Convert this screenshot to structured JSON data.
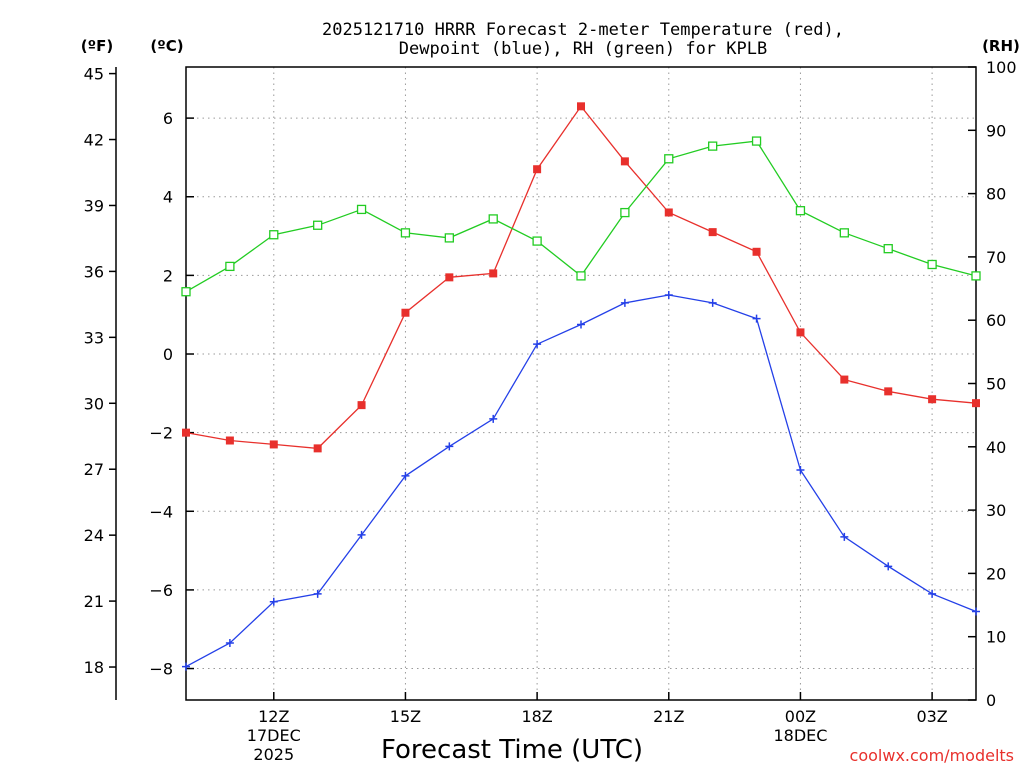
{
  "chart_data": {
    "type": "line",
    "title_line1": "2025121710 HRRR Forecast 2-meter Temperature (red),",
    "title_line2": "Dewpoint (blue), RH (green) for KPLB",
    "xlabel": "Forecast Time (UTC)",
    "credit": "coolwx.com/modelts",
    "units": {
      "fahrenheit": "(ºF)",
      "celsius": "(ºC)",
      "rh": "(RH)"
    },
    "x_hours": [
      10,
      11,
      12,
      13,
      14,
      15,
      16,
      17,
      18,
      19,
      20,
      21,
      22,
      23,
      24,
      25,
      26,
      27,
      28
    ],
    "x_ticks": [
      {
        "hour": 12,
        "lines": [
          "12Z",
          "17DEC",
          "2025"
        ]
      },
      {
        "hour": 15,
        "lines": [
          "15Z"
        ]
      },
      {
        "hour": 18,
        "lines": [
          "18Z"
        ]
      },
      {
        "hour": 21,
        "lines": [
          "21Z"
        ]
      },
      {
        "hour": 24,
        "lines": [
          "00Z",
          "18DEC"
        ]
      },
      {
        "hour": 27,
        "lines": [
          "03Z"
        ]
      }
    ],
    "xlim": [
      10,
      28
    ],
    "celsius_axis": {
      "range": [
        -8.8,
        7.3
      ],
      "ticks": [
        "-8",
        "-6",
        "-4",
        "-2",
        "0",
        "2",
        "4",
        "6"
      ]
    },
    "fahrenheit_axis": {
      "range": [
        16.5,
        45.3
      ],
      "ticks": [
        "18",
        "21",
        "24",
        "27",
        "30",
        "33",
        "36",
        "39",
        "42",
        "45"
      ]
    },
    "rh_axis": {
      "range": [
        0,
        100
      ],
      "ticks": [
        "0",
        "10",
        "20",
        "30",
        "40",
        "50",
        "60",
        "70",
        "80",
        "90",
        "100"
      ]
    },
    "series": [
      {
        "name": "Temperature",
        "units": "C",
        "axis": "celsius",
        "color": "#e8302c",
        "marker": "filled-square",
        "values": [
          -2.0,
          -2.2,
          -2.3,
          -2.4,
          -1.3,
          1.05,
          1.95,
          2.05,
          4.7,
          6.3,
          4.9,
          3.6,
          3.1,
          2.6,
          0.55,
          -0.65,
          -0.95,
          -1.15,
          -1.25
        ]
      },
      {
        "name": "Dewpoint",
        "units": "C",
        "axis": "celsius",
        "color": "#2440e8",
        "marker": "plus",
        "values": [
          -7.95,
          -7.35,
          -6.3,
          -6.1,
          -4.6,
          -3.1,
          -2.35,
          -1.65,
          0.25,
          0.75,
          1.3,
          1.5,
          1.3,
          0.9,
          -2.95,
          -4.65,
          -5.4,
          -6.1,
          -6.55
        ]
      },
      {
        "name": "RH",
        "units": "%",
        "axis": "rh",
        "color": "#22cc22",
        "marker": "open-square",
        "values": [
          64.5,
          68.5,
          73.5,
          75.0,
          77.5,
          73.8,
          73.0,
          76.0,
          72.5,
          67.0,
          77.0,
          85.5,
          87.5,
          88.3,
          77.3,
          73.8,
          71.3,
          68.8,
          67.0
        ]
      }
    ]
  }
}
